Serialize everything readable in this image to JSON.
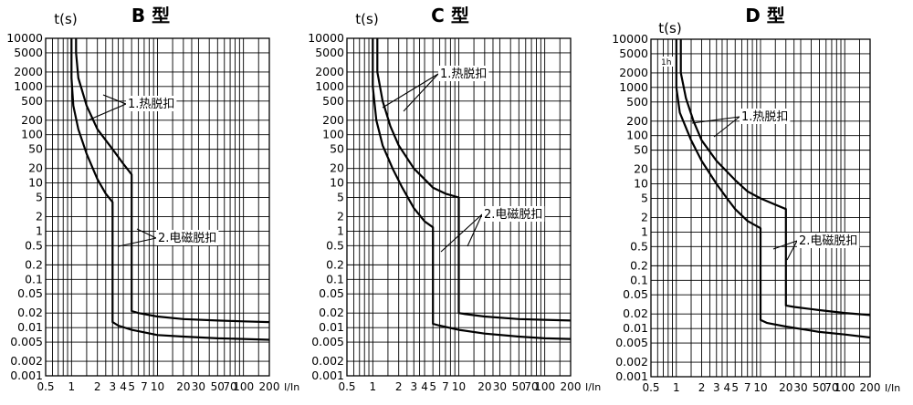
{
  "chart_data": [
    {
      "type": "line",
      "title": "B 型",
      "ylabel": "t(s)",
      "xlabel": "I/In",
      "y_scale": "log",
      "ylim": [
        0.001,
        10000
      ],
      "x_scale": "log",
      "xlim": [
        0.5,
        200
      ],
      "grid": true,
      "y_ticks": [
        "10000",
        "5000",
        "2000",
        "1000",
        "500",
        "200",
        "100",
        "50",
        "20",
        "10",
        "5",
        "2",
        "1",
        "0.5",
        "0.2",
        "0.1",
        "0.05",
        "0.02",
        "0.01",
        "0.005",
        "0.002",
        "0.001"
      ],
      "x_ticks": [
        "0.5",
        "1",
        "2",
        "3",
        "4",
        "5",
        "7",
        "10",
        "20",
        "30",
        "50",
        "70",
        "100",
        "200"
      ],
      "annotations": [
        {
          "text": "1.热脱扣"
        },
        {
          "text": "2.电磁脱扣"
        }
      ],
      "series": [
        {
          "x": [
            1.0,
            1.0,
            1.05,
            1.2,
            1.5,
            2.0,
            2.5,
            3.0,
            3.0,
            3.5,
            5,
            10,
            20,
            50,
            100,
            200
          ],
          "y": [
            10000,
            1500,
            400,
            130,
            40,
            12,
            6,
            4,
            0.013,
            0.011,
            0.009,
            0.007,
            0.0065,
            0.006,
            0.0058,
            0.0056
          ]
        },
        {
          "x": [
            1.13,
            1.13,
            1.2,
            1.5,
            2.0,
            3.0,
            4.0,
            5.0,
            5.0,
            6,
            10,
            20,
            50,
            100,
            200
          ],
          "y": [
            10000,
            5000,
            1500,
            400,
            130,
            50,
            25,
            15,
            0.022,
            0.02,
            0.017,
            0.015,
            0.014,
            0.0135,
            0.013
          ]
        }
      ]
    },
    {
      "type": "line",
      "title": "C 型",
      "ylabel": "t(s)",
      "xlabel": "I/In",
      "y_scale": "log",
      "ylim": [
        0.001,
        10000
      ],
      "x_scale": "log",
      "xlim": [
        0.5,
        200
      ],
      "grid": true,
      "y_ticks": [
        "10000",
        "5000",
        "2000",
        "1000",
        "500",
        "200",
        "100",
        "50",
        "20",
        "10",
        "5",
        "2",
        "1",
        "0.5",
        "0.2",
        "0.1",
        "0.05",
        "0.02",
        "0.01",
        "0.005",
        "0.002",
        "0.001"
      ],
      "x_ticks": [
        "0.5",
        "1",
        "2",
        "3",
        "4",
        "5",
        "7",
        "10",
        "20",
        "30",
        "50",
        "70",
        "100",
        "200"
      ],
      "annotations": [
        {
          "text": "1.热脱扣"
        },
        {
          "text": "2.电磁脱扣"
        }
      ],
      "series": [
        {
          "x": [
            1.0,
            1.0,
            1.1,
            1.3,
            1.7,
            2.2,
            3.0,
            4.0,
            5.0,
            5.0,
            6,
            10,
            20,
            50,
            100,
            200
          ],
          "y": [
            10000,
            1000,
            200,
            60,
            20,
            8,
            3,
            1.6,
            1.2,
            0.012,
            0.011,
            0.009,
            0.0075,
            0.0065,
            0.006,
            0.0058
          ]
        },
        {
          "x": [
            1.13,
            1.13,
            1.3,
            1.6,
            2.0,
            3.0,
            5.0,
            7.0,
            10.0,
            10.0,
            12,
            20,
            50,
            100,
            200
          ],
          "y": [
            10000,
            2000,
            500,
            150,
            60,
            20,
            8,
            6,
            5,
            0.02,
            0.019,
            0.017,
            0.015,
            0.0145,
            0.014
          ]
        }
      ]
    },
    {
      "type": "line",
      "title": "D 型",
      "ylabel": "t(s)",
      "xlabel": "I/In",
      "y_scale": "log",
      "ylim": [
        0.001,
        10000
      ],
      "x_scale": "log",
      "xlim": [
        0.5,
        200
      ],
      "grid": true,
      "y_ticks": [
        "10000",
        "5000",
        "2000",
        "1000",
        "500",
        "200",
        "100",
        "50",
        "20",
        "10",
        "5",
        "2",
        "1",
        "0.5",
        "0.2",
        "0.1",
        "0.05",
        "0.02",
        "0.01",
        "0.005",
        "0.002",
        "0.001"
      ],
      "x_ticks": [
        "0.5",
        "1",
        "2",
        "3",
        "4",
        "5",
        "7",
        "10",
        "20",
        "30",
        "50",
        "70",
        "100",
        "200"
      ],
      "annotations": [
        {
          "text": "1.热脱扣"
        },
        {
          "text": "2.电磁脱扣"
        },
        {
          "text": "1h"
        }
      ],
      "series": [
        {
          "x": [
            1.0,
            1.0,
            1.1,
            1.5,
            2.0,
            3.0,
            4.0,
            5.0,
            7.0,
            10.0,
            10.0,
            12,
            20,
            50,
            100,
            200
          ],
          "y": [
            10000,
            1000,
            300,
            80,
            30,
            10,
            5,
            3,
            1.7,
            1.2,
            0.015,
            0.013,
            0.011,
            0.0085,
            0.0075,
            0.0065
          ]
        },
        {
          "x": [
            1.13,
            1.13,
            1.3,
            1.6,
            2.0,
            3.0,
            5.0,
            7.0,
            10.0,
            15,
            20.0,
            20.0,
            25,
            50,
            100,
            200
          ],
          "y": [
            10000,
            2000,
            600,
            200,
            80,
            30,
            12,
            7,
            5,
            3.7,
            3,
            0.03,
            0.028,
            0.024,
            0.021,
            0.019
          ]
        }
      ]
    }
  ]
}
